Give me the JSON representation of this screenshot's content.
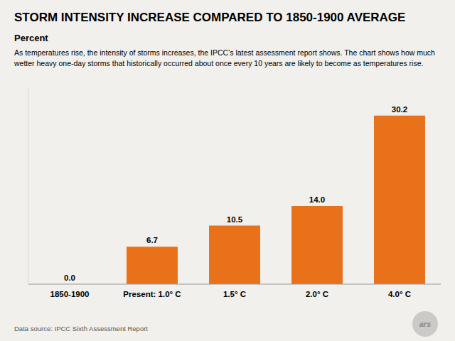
{
  "chart_data": {
    "type": "bar",
    "title": "STORM INTENSITY INCREASE COMPARED TO 1850-1900 AVERAGE",
    "subtitle": "Percent",
    "annotations": [
      "As temperatures rise, the intensity of storms increases, the IPCC’s latest assessment report shows. The chart shows how much",
      "wetter heavy one-day storms that historically occurred about once every 10 years are likely to become as temperatures rise.",
      "Data source: IPCC Sixth Assessment Report",
      "ars"
    ],
    "categories": [
      "1850-1900",
      "Present: 1.0° C",
      "1.5° C",
      "2.0° C",
      "4.0° C"
    ],
    "values": [
      0.0,
      6.7,
      10.5,
      14.0,
      30.2
    ],
    "value_labels": [
      "0.0",
      "6.7",
      "10.5",
      "14.0",
      "30.2"
    ],
    "color": "#E8711A",
    "ylim": [
      0,
      35
    ],
    "grid": false,
    "data_labels": true,
    "tick_labels": "x"
  }
}
